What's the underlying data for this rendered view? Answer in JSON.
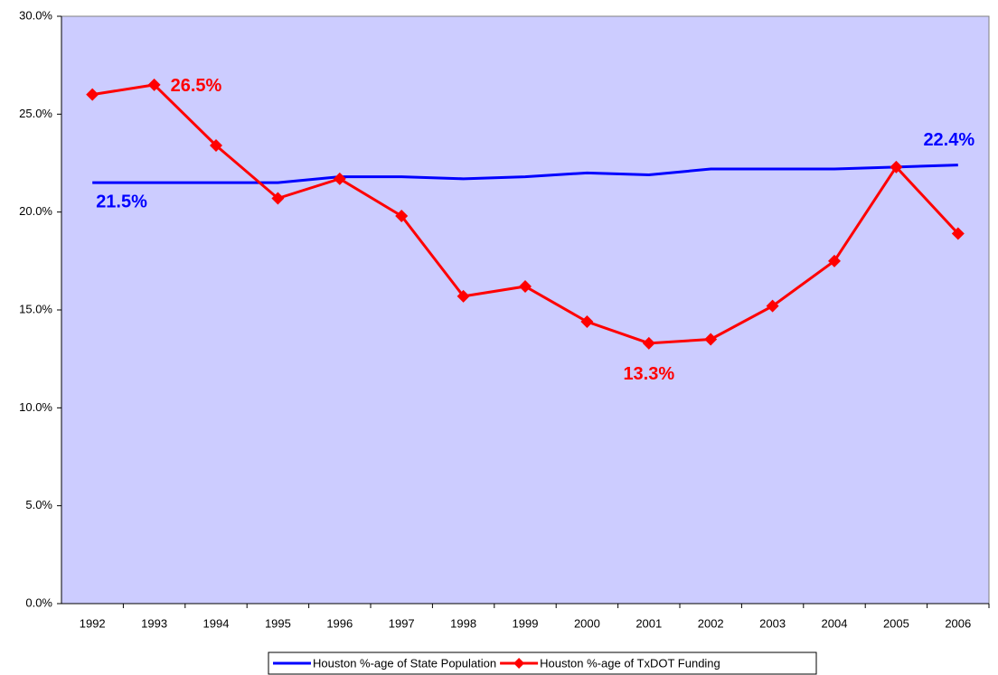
{
  "chart_data": {
    "type": "line",
    "categories": [
      "1992",
      "1993",
      "1994",
      "1995",
      "1996",
      "1997",
      "1998",
      "1999",
      "2000",
      "2001",
      "2002",
      "2003",
      "2004",
      "2005",
      "2006"
    ],
    "series": [
      {
        "name": "Houston %-age of State Population",
        "color": "#0000ff",
        "values": [
          21.5,
          21.5,
          21.5,
          21.5,
          21.8,
          21.8,
          21.7,
          21.8,
          22.0,
          21.9,
          22.2,
          22.2,
          22.2,
          22.3,
          22.4
        ],
        "value_labels": [
          "21.5%",
          null,
          null,
          null,
          null,
          null,
          null,
          null,
          null,
          null,
          null,
          null,
          null,
          null,
          "22.4%"
        ]
      },
      {
        "name": "Houston %-age of TxDOT Funding",
        "color": "#ff0000",
        "values": [
          26.0,
          26.5,
          23.4,
          20.7,
          21.7,
          19.8,
          15.7,
          16.2,
          14.4,
          13.3,
          13.5,
          15.2,
          17.5,
          22.3,
          18.9
        ],
        "value_labels": [
          null,
          "26.5%",
          null,
          null,
          null,
          null,
          null,
          null,
          null,
          "13.3%",
          null,
          null,
          null,
          null,
          null
        ],
        "marker": "diamond"
      }
    ],
    "ylim": [
      0,
      30
    ],
    "yticks": [
      {
        "value": 0,
        "label": "0.0%"
      },
      {
        "value": 5,
        "label": "5.0%"
      },
      {
        "value": 10,
        "label": "10.0%"
      },
      {
        "value": 15,
        "label": "15.0%"
      },
      {
        "value": 20,
        "label": "20.0%"
      },
      {
        "value": 25,
        "label": "25.0%"
      },
      {
        "value": 30,
        "label": "30.0%"
      }
    ],
    "grid": false,
    "legend": "bottom",
    "plot_background": "#ccccff"
  }
}
